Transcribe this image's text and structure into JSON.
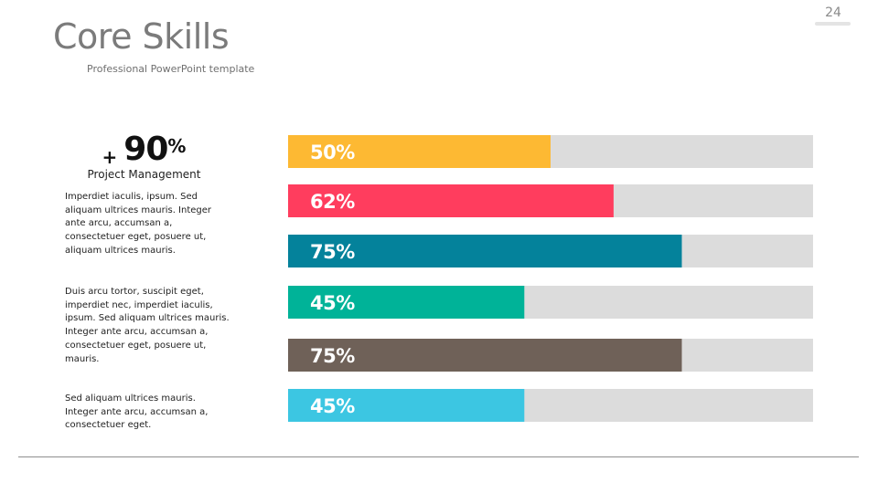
{
  "slide": {
    "page_number": "24",
    "title": "Core Skills",
    "subtitle": "Professional PowerPoint template"
  },
  "stat": {
    "plus": "+",
    "number": "90",
    "percent": "%",
    "label": "Project Management"
  },
  "descriptions": [
    "Imperdiet iaculis, ipsum. Sed aliquam ultrices mauris. Integer ante arcu, accumsan a, consectetuer eget, posuere ut, aliquam ultrices mauris.",
    "Duis arcu tortor, suscipit eget, imperdiet nec, imperdiet iaculis, ipsum. Sed aliquam ultrices mauris. Integer ante arcu, accumsan a, consectetuer eget, posuere ut, mauris.",
    "Sed aliquam ultrices mauris. Integer ante arcu, accumsan a, consectetuer eget."
  ],
  "chart_data": {
    "type": "bar",
    "orientation": "horizontal",
    "values": [
      50,
      62,
      75,
      45,
      75,
      45
    ],
    "labels": [
      "50%",
      "62%",
      "75%",
      "45%",
      "75%",
      "45%"
    ],
    "colors": [
      "#FDB933",
      "#FF3D5E",
      "#04829B",
      "#00B398",
      "#6F6158",
      "#3CC6E2"
    ],
    "track_color": "#DCDCDC",
    "xlim": [
      0,
      100
    ],
    "title": "",
    "xlabel": "",
    "ylabel": "",
    "grid": false,
    "legend": "none"
  }
}
